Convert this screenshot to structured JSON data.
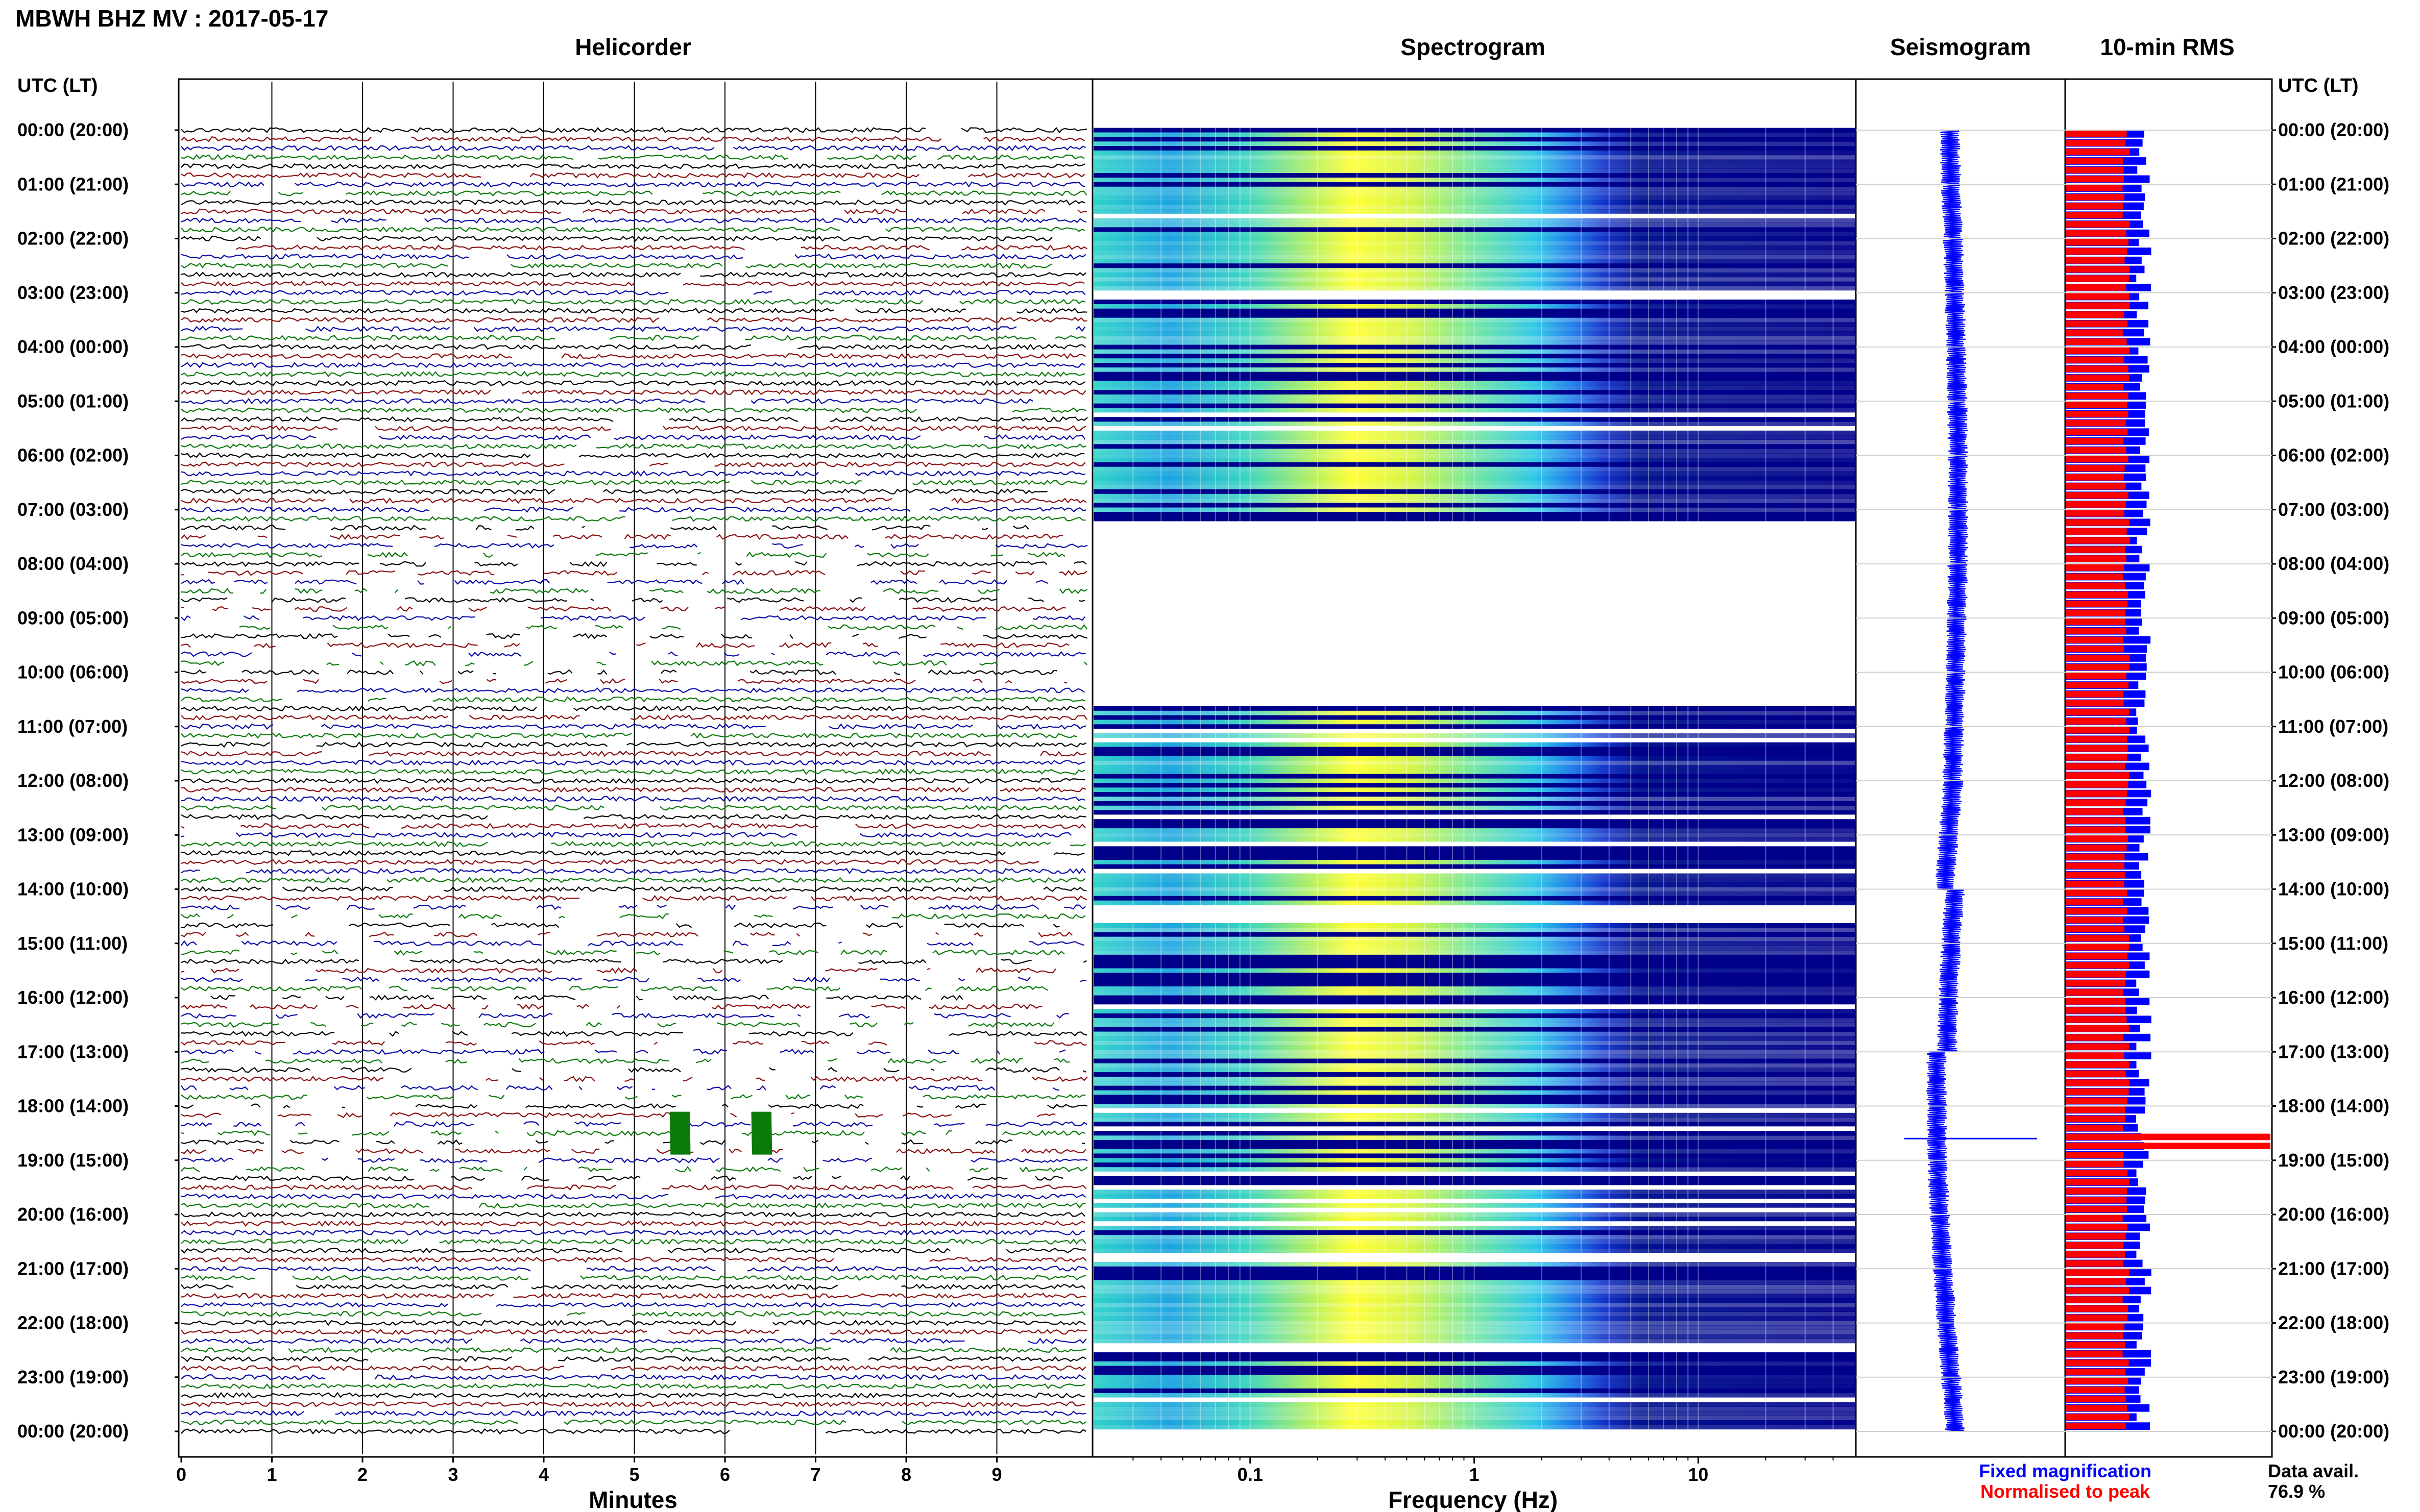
{
  "header": {
    "title": "MBWH BHZ MV : 2017-05-17",
    "panel_helicorder": "Helicorder",
    "panel_spectrogram": "Spectrogram",
    "panel_seismogram": "Seismogram",
    "panel_rms": "10-min RMS",
    "axis_label_left": "UTC (LT)",
    "axis_label_right": "UTC (LT)"
  },
  "footer": {
    "helicorder_xlabel": "Minutes",
    "spectrogram_xlabel": "Frequency (Hz)",
    "legend_fixed": "Fixed magnification",
    "legend_normalised": "Normalised to peak",
    "data_avail_label": "Data avail.",
    "data_avail_value": "76.9 %"
  },
  "colors": {
    "trace_cycle": [
      "#000000",
      "#8b1010",
      "#0a0aa8",
      "#0a7a0a"
    ],
    "fixed": "#0000ff",
    "normalised": "#ff0000",
    "spec_low": "#00008b",
    "spec_high": "#ffff00"
  },
  "chart_data": {
    "type": "helicorder",
    "time_labels": [
      "00:00 (20:00)",
      "01:00 (21:00)",
      "02:00 (22:00)",
      "03:00 (23:00)",
      "04:00 (00:00)",
      "05:00 (01:00)",
      "06:00 (02:00)",
      "07:00 (03:00)",
      "08:00 (04:00)",
      "09:00 (05:00)",
      "10:00 (06:00)",
      "11:00 (07:00)",
      "12:00 (08:00)",
      "13:00 (09:00)",
      "14:00 (10:00)",
      "15:00 (11:00)",
      "16:00 (12:00)",
      "17:00 (13:00)",
      "18:00 (14:00)",
      "19:00 (15:00)",
      "20:00 (16:00)",
      "21:00 (17:00)",
      "22:00 (18:00)",
      "23:00 (19:00)",
      "00:00 (20:00)"
    ],
    "helicorder": {
      "xlim": [
        0,
        10
      ],
      "xticks": [
        "0",
        "1",
        "2",
        "3",
        "4",
        "5",
        "6",
        "7",
        "8",
        "9"
      ],
      "lines_per_hour": 6,
      "events": [
        {
          "minute": 5.5,
          "hour": 18.5
        },
        {
          "minute": 6.4,
          "hour": 18.5
        }
      ]
    },
    "spectrogram": {
      "xscale": "log",
      "xlim": [
        0.02,
        50
      ],
      "xticks": [
        "0.1",
        "1",
        "10"
      ],
      "gaps": [
        [
          7.2,
          7.8
        ],
        [
          7.8,
          10.6
        ],
        [
          14.3,
          14.6
        ]
      ]
    },
    "seismogram": {
      "spike_hour": 18.6
    },
    "rms": {
      "interval_minutes": 10,
      "fixed_level": 0.38,
      "normalised_level": 0.3,
      "peak_hour": 18.6
    }
  }
}
